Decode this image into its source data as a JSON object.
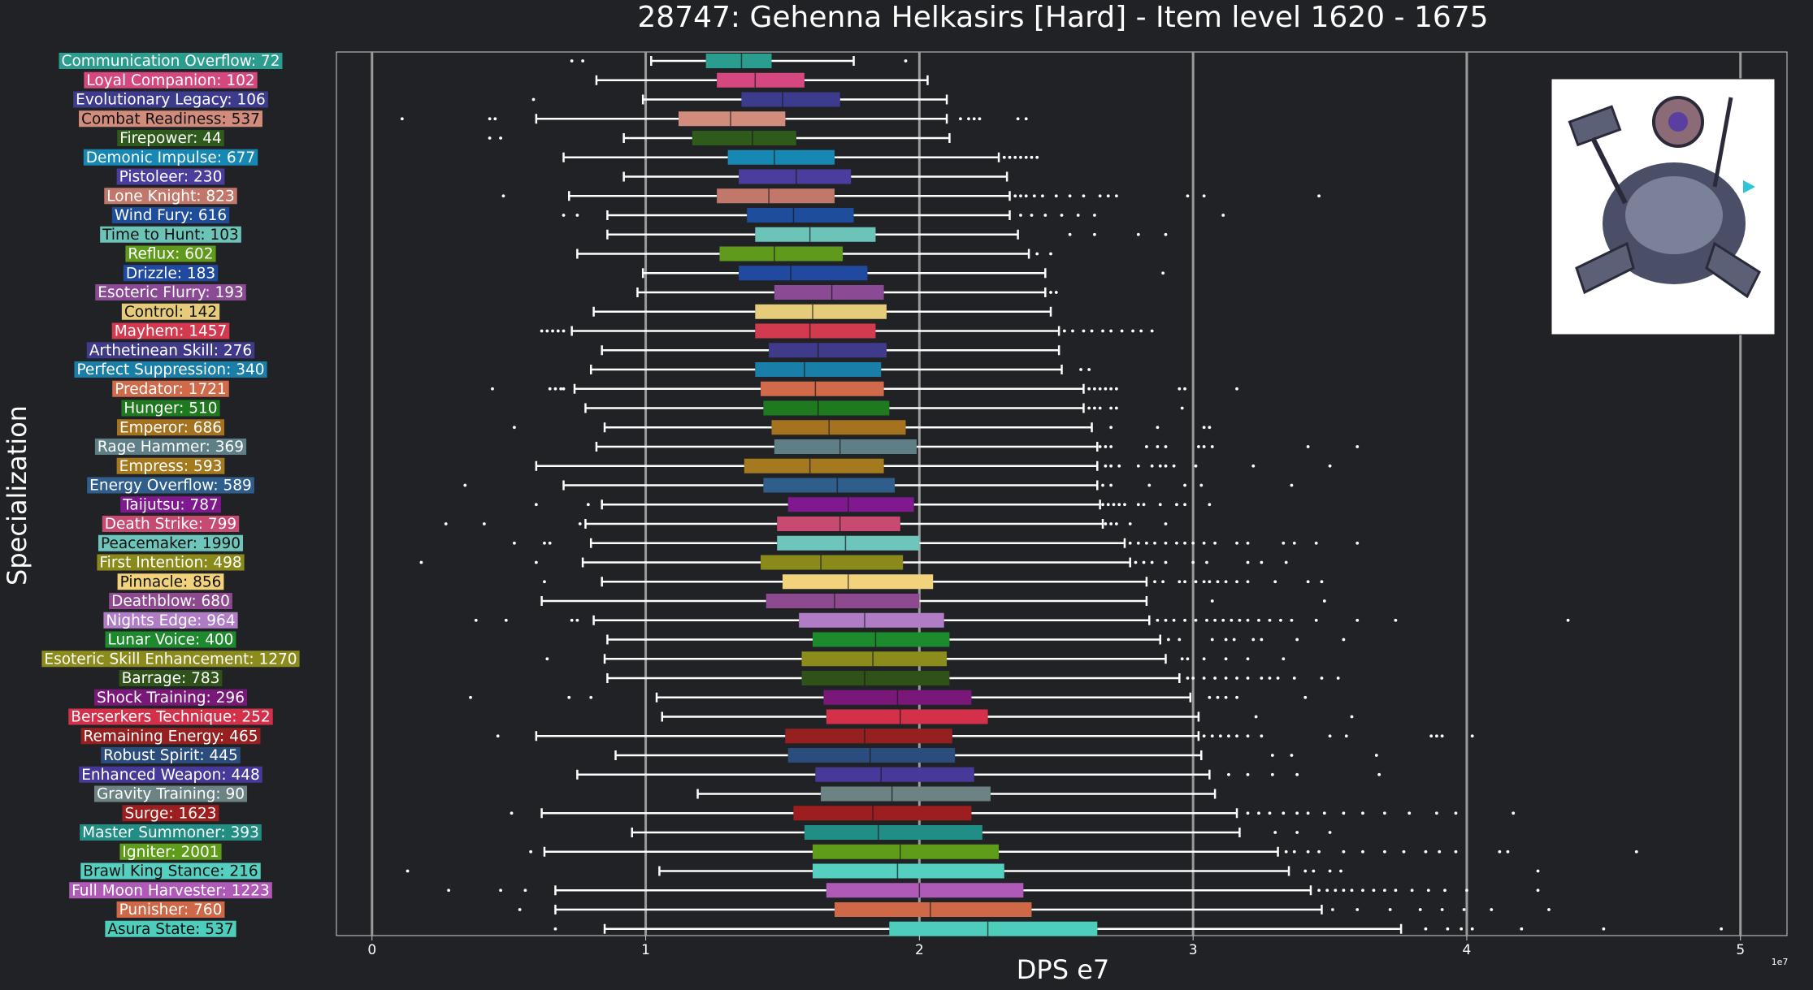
{
  "chart_data": {
    "type": "box",
    "title": "28747: Gehenna Helkasirs [Hard] - Item level 1620 - 1675",
    "xlabel": "DPS e7",
    "ylabel": "Specialization",
    "x_offset_label": "1e7",
    "xlim": [
      -0.13,
      5.17
    ],
    "xticks": [
      0,
      1,
      2,
      3,
      4,
      5
    ],
    "grid": "vertical lines at major ticks",
    "image": "boss portrait (top-right)",
    "categories": [
      {
        "label": "Communication Overflow: 72",
        "color": "#2a9d8f",
        "whislo": 1.02,
        "q1": 1.22,
        "med": 1.35,
        "q3": 1.46,
        "whishi": 1.76,
        "fliers": [
          0.73,
          0.77,
          1.95
        ]
      },
      {
        "label": "Loyal Companion: 102",
        "color": "#d4477f",
        "whislo": 0.82,
        "q1": 1.26,
        "med": 1.4,
        "q3": 1.58,
        "whishi": 2.03,
        "fliers": []
      },
      {
        "label": "Evolutionary Legacy: 106",
        "color": "#3d3b8e",
        "whislo": 0.99,
        "q1": 1.35,
        "med": 1.5,
        "q3": 1.71,
        "whishi": 2.1,
        "fliers": [
          0.59
        ]
      },
      {
        "label": "Combat Readiness: 537",
        "color": "#d28c7c",
        "whislo": 0.6,
        "q1": 1.12,
        "med": 1.31,
        "q3": 1.51,
        "whishi": 2.1,
        "fliers": [
          0.11,
          0.43,
          0.45,
          2.15,
          2.18,
          2.2,
          2.22,
          2.36,
          2.39
        ]
      },
      {
        "label": "Firepower: 44",
        "color": "#2e5a1c",
        "whislo": 0.92,
        "q1": 1.17,
        "med": 1.39,
        "q3": 1.55,
        "whishi": 2.11,
        "fliers": [
          0.43,
          0.47
        ]
      },
      {
        "label": "Demonic Impulse: 677",
        "color": "#1688b3",
        "whislo": 0.7,
        "q1": 1.3,
        "med": 1.47,
        "q3": 1.69,
        "whishi": 2.29,
        "fliers": [
          2.31,
          2.33,
          2.35,
          2.37,
          2.39,
          2.41,
          2.43
        ]
      },
      {
        "label": "Pistoleer: 230",
        "color": "#4b3d9e",
        "whislo": 0.92,
        "q1": 1.34,
        "med": 1.55,
        "q3": 1.75,
        "whishi": 2.32,
        "fliers": []
      },
      {
        "label": "Lone Knight: 823",
        "color": "#c1786a",
        "whislo": 0.72,
        "q1": 1.26,
        "med": 1.45,
        "q3": 1.69,
        "whishi": 2.33,
        "fliers": [
          0.48,
          2.35,
          2.37,
          2.39,
          2.42,
          2.45,
          2.5,
          2.55,
          2.6,
          2.66,
          2.69,
          2.72,
          2.98,
          3.04,
          3.46
        ]
      },
      {
        "label": "Wind Fury: 616",
        "color": "#1e4d9c",
        "whislo": 0.86,
        "q1": 1.37,
        "med": 1.54,
        "q3": 1.76,
        "whishi": 2.33,
        "fliers": [
          0.7,
          0.75,
          2.37,
          2.41,
          2.46,
          2.52,
          2.58,
          2.64,
          3.11
        ]
      },
      {
        "label": "Time to Hunt: 103",
        "color": "#6cc3b8",
        "whislo": 0.86,
        "q1": 1.4,
        "med": 1.6,
        "q3": 1.84,
        "whishi": 2.36,
        "fliers": [
          2.55,
          2.64,
          2.8,
          2.9
        ]
      },
      {
        "label": "Reflux: 602",
        "color": "#5f9a1c",
        "whislo": 0.75,
        "q1": 1.27,
        "med": 1.47,
        "q3": 1.72,
        "whishi": 2.4,
        "fliers": [
          2.43,
          2.48
        ]
      },
      {
        "label": "Drizzle: 183",
        "color": "#1f4aa0",
        "whislo": 0.99,
        "q1": 1.34,
        "med": 1.53,
        "q3": 1.81,
        "whishi": 2.46,
        "fliers": [
          2.89
        ]
      },
      {
        "label": "Esoteric Flurry: 193",
        "color": "#8a4a94",
        "whislo": 0.97,
        "q1": 1.47,
        "med": 1.68,
        "q3": 1.87,
        "whishi": 2.46,
        "fliers": [
          2.48,
          2.5
        ]
      },
      {
        "label": "Control: 142",
        "color": "#e6cc7a",
        "whislo": 0.81,
        "q1": 1.4,
        "med": 1.61,
        "q3": 1.88,
        "whishi": 2.48,
        "fliers": []
      },
      {
        "label": "Mayhem: 1457",
        "color": "#d43a4f",
        "whislo": 0.73,
        "q1": 1.4,
        "med": 1.6,
        "q3": 1.84,
        "whishi": 2.51,
        "fliers": [
          0.62,
          0.64,
          0.66,
          0.68,
          0.7,
          2.53,
          2.56,
          2.6,
          2.63,
          2.67,
          2.7,
          2.74,
          2.78,
          2.81,
          2.85
        ]
      },
      {
        "label": "Arthetinean Skill: 276",
        "color": "#3f3b8a",
        "whislo": 0.84,
        "q1": 1.45,
        "med": 1.63,
        "q3": 1.88,
        "whishi": 2.51,
        "fliers": []
      },
      {
        "label": "Perfect Suppression: 340",
        "color": "#1a7fa8",
        "whislo": 0.8,
        "q1": 1.4,
        "med": 1.58,
        "q3": 1.86,
        "whishi": 2.52,
        "fliers": [
          2.59,
          2.62
        ]
      },
      {
        "label": "Predator: 1721",
        "color": "#d06a4a",
        "whislo": 0.74,
        "q1": 1.42,
        "med": 1.62,
        "q3": 1.87,
        "whishi": 2.6,
        "fliers": [
          0.44,
          0.65,
          0.67,
          0.69,
          0.7,
          2.62,
          2.64,
          2.66,
          2.68,
          2.7,
          2.72,
          2.95,
          2.97,
          3.16
        ]
      },
      {
        "label": "Hunger: 510",
        "color": "#1f7a1f",
        "whislo": 0.78,
        "q1": 1.43,
        "med": 1.63,
        "q3": 1.89,
        "whishi": 2.6,
        "fliers": [
          2.62,
          2.64,
          2.66,
          2.7,
          2.72,
          2.96
        ]
      },
      {
        "label": "Emperor: 686",
        "color": "#a5731f",
        "whislo": 0.85,
        "q1": 1.46,
        "med": 1.67,
        "q3": 1.95,
        "whishi": 2.63,
        "fliers": [
          0.52,
          2.7,
          2.87,
          3.04,
          3.06
        ]
      },
      {
        "label": "Rage Hammer: 369",
        "color": "#5f7f87",
        "whislo": 0.82,
        "q1": 1.47,
        "med": 1.71,
        "q3": 1.99,
        "whishi": 2.65,
        "fliers": [
          2.66,
          2.68,
          2.7,
          2.83,
          2.87,
          2.9,
          3.02,
          3.04,
          3.07,
          3.42,
          3.6
        ]
      },
      {
        "label": "Empress: 593",
        "color": "#a57a1f",
        "whislo": 0.6,
        "q1": 1.36,
        "med": 1.6,
        "q3": 1.87,
        "whishi": 2.65,
        "fliers": [
          2.68,
          2.7,
          2.73,
          2.8,
          2.85,
          2.88,
          2.9,
          2.93,
          3.01,
          3.22,
          3.5
        ]
      },
      {
        "label": "Energy Overflow: 589",
        "color": "#2f5d8c",
        "whislo": 0.7,
        "q1": 1.43,
        "med": 1.7,
        "q3": 1.91,
        "whishi": 2.65,
        "fliers": [
          0.34,
          2.67,
          2.7,
          2.84,
          2.97,
          3.03,
          3.36
        ]
      },
      {
        "label": "Taijutsu: 787",
        "color": "#801890",
        "whislo": 0.84,
        "q1": 1.52,
        "med": 1.74,
        "q3": 1.98,
        "whishi": 2.66,
        "fliers": [
          0.6,
          0.79,
          2.67,
          2.69,
          2.71,
          2.73,
          2.75,
          2.8,
          2.82,
          2.88,
          2.94,
          2.97,
          3.06
        ]
      },
      {
        "label": "Death Strike: 799",
        "color": "#c74a70",
        "whislo": 0.78,
        "q1": 1.48,
        "med": 1.71,
        "q3": 1.93,
        "whishi": 2.67,
        "fliers": [
          0.27,
          0.41,
          0.76,
          2.68,
          2.7,
          2.72,
          2.77,
          2.9
        ]
      },
      {
        "label": "Peacemaker: 1990",
        "color": "#6ec5bb",
        "whislo": 0.8,
        "q1": 1.48,
        "med": 1.73,
        "q3": 2.0,
        "whishi": 2.75,
        "fliers": [
          0.52,
          0.63,
          0.65,
          2.77,
          2.8,
          2.83,
          2.86,
          2.9,
          2.94,
          2.97,
          3.0,
          3.04,
          3.08,
          3.16,
          3.2,
          3.33,
          3.37,
          3.45,
          3.6
        ]
      },
      {
        "label": "First Intention: 498",
        "color": "#8a8a1a",
        "whislo": 0.77,
        "q1": 1.42,
        "med": 1.64,
        "q3": 1.94,
        "whishi": 2.77,
        "fliers": [
          0.18,
          0.6,
          2.79,
          2.82,
          2.85,
          2.9,
          3.0,
          3.05,
          3.2,
          3.25,
          3.34
        ]
      },
      {
        "label": "Pinnacle: 856",
        "color": "#f2d27a",
        "whislo": 0.84,
        "q1": 1.5,
        "med": 1.74,
        "q3": 2.05,
        "whishi": 2.83,
        "fliers": [
          0.63,
          2.86,
          2.89,
          2.95,
          2.97,
          3.01,
          3.04,
          3.06,
          3.09,
          3.12,
          3.16,
          3.2,
          3.3,
          3.42,
          3.47
        ]
      },
      {
        "label": "Deathblow: 680",
        "color": "#8e4a8e",
        "whislo": 0.62,
        "q1": 1.44,
        "med": 1.69,
        "q3": 2.0,
        "whishi": 2.83,
        "fliers": [
          3.07,
          3.48
        ]
      },
      {
        "label": "Nights Edge: 964",
        "color": "#b07cc6",
        "whislo": 0.81,
        "q1": 1.56,
        "med": 1.8,
        "q3": 2.09,
        "whishi": 2.84,
        "fliers": [
          0.38,
          0.49,
          0.73,
          0.75,
          2.87,
          2.9,
          2.93,
          2.97,
          3.01,
          3.05,
          3.08,
          3.11,
          3.14,
          3.17,
          3.2,
          3.24,
          3.28,
          3.32,
          3.36,
          3.45,
          3.6,
          3.74,
          4.37
        ]
      },
      {
        "label": "Lunar Voice: 400",
        "color": "#1e8a2e",
        "whislo": 0.86,
        "q1": 1.61,
        "med": 1.84,
        "q3": 2.11,
        "whishi": 2.88,
        "fliers": [
          2.91,
          2.95,
          3.07,
          3.12,
          3.15,
          3.22,
          3.25,
          3.38,
          3.55
        ]
      },
      {
        "label": "Esoteric Skill Enhancement: 1270",
        "color": "#8c8c1c",
        "whislo": 0.85,
        "q1": 1.57,
        "med": 1.83,
        "q3": 2.1,
        "whishi": 2.9,
        "fliers": [
          0.64,
          2.96,
          2.98,
          3.04,
          3.12,
          3.2,
          3.33
        ]
      },
      {
        "label": "Barrage: 783",
        "color": "#2f5219",
        "whislo": 0.86,
        "q1": 1.57,
        "med": 1.8,
        "q3": 2.11,
        "whishi": 2.95,
        "fliers": [
          2.98,
          3.0,
          3.04,
          3.08,
          3.12,
          3.16,
          3.2,
          3.25,
          3.28,
          3.31,
          3.37,
          3.47,
          3.53
        ]
      },
      {
        "label": "Shock Training: 296",
        "color": "#7a187a",
        "whislo": 1.04,
        "q1": 1.65,
        "med": 1.92,
        "q3": 2.19,
        "whishi": 2.99,
        "fliers": [
          0.36,
          0.72,
          0.8,
          3.06,
          3.09,
          3.12,
          3.16,
          3.41
        ]
      },
      {
        "label": "Berserkers Technique: 252",
        "color": "#d4304a",
        "whislo": 1.06,
        "q1": 1.66,
        "med": 1.93,
        "q3": 2.25,
        "whishi": 3.02,
        "fliers": [
          3.23,
          3.58
        ]
      },
      {
        "label": "Remaining Energy: 465",
        "color": "#962020",
        "whislo": 0.6,
        "q1": 1.51,
        "med": 1.8,
        "q3": 2.12,
        "whishi": 3.02,
        "fliers": [
          0.46,
          3.04,
          3.07,
          3.1,
          3.13,
          3.16,
          3.2,
          3.25,
          3.5,
          3.56,
          3.87,
          3.89,
          3.91,
          4.02
        ]
      },
      {
        "label": "Robust Spirit: 445",
        "color": "#2a4d7d",
        "whislo": 0.89,
        "q1": 1.52,
        "med": 1.82,
        "q3": 2.13,
        "whishi": 3.03,
        "fliers": [
          3.29,
          3.36,
          3.67
        ]
      },
      {
        "label": "Enhanced Weapon: 448",
        "color": "#46399a",
        "whislo": 0.75,
        "q1": 1.62,
        "med": 1.86,
        "q3": 2.2,
        "whishi": 3.06,
        "fliers": [
          3.13,
          3.2,
          3.29,
          3.38,
          3.68
        ]
      },
      {
        "label": "Gravity Training: 90",
        "color": "#6c8384",
        "whislo": 1.19,
        "q1": 1.64,
        "med": 1.9,
        "q3": 2.26,
        "whishi": 3.08,
        "fliers": []
      },
      {
        "label": "Surge: 1623",
        "color": "#9c1e1e",
        "whislo": 0.62,
        "q1": 1.54,
        "med": 1.83,
        "q3": 2.19,
        "whishi": 3.16,
        "fliers": [
          0.51,
          3.2,
          3.24,
          3.28,
          3.33,
          3.38,
          3.42,
          3.48,
          3.55,
          3.62,
          3.7,
          3.79,
          3.89,
          3.96,
          4.17
        ]
      },
      {
        "label": "Master Summoner: 393",
        "color": "#218e85",
        "whislo": 0.95,
        "q1": 1.58,
        "med": 1.85,
        "q3": 2.23,
        "whishi": 3.17,
        "fliers": [
          3.3,
          3.38,
          3.5
        ]
      },
      {
        "label": "Igniter: 2001",
        "color": "#5f9c1a",
        "whislo": 0.63,
        "q1": 1.61,
        "med": 1.93,
        "q3": 2.29,
        "whishi": 3.31,
        "fliers": [
          0.58,
          3.34,
          3.37,
          3.42,
          3.46,
          3.55,
          3.62,
          3.7,
          3.77,
          3.85,
          3.9,
          3.96,
          4.12,
          4.15,
          4.62
        ]
      },
      {
        "label": "Brawl King Stance: 216",
        "color": "#55cfc0",
        "whislo": 1.05,
        "q1": 1.61,
        "med": 1.92,
        "q3": 2.31,
        "whishi": 3.35,
        "fliers": [
          0.13,
          3.41,
          3.44,
          3.5,
          3.54,
          4.26
        ]
      },
      {
        "label": "Full Moon Harvester: 1223",
        "color": "#b05ab7",
        "whislo": 0.67,
        "q1": 1.66,
        "med": 2.0,
        "q3": 2.38,
        "whishi": 3.43,
        "fliers": [
          0.28,
          0.47,
          0.56,
          3.46,
          3.49,
          3.52,
          3.55,
          3.58,
          3.62,
          3.66,
          3.7,
          3.74,
          3.8,
          3.86,
          3.92,
          4.0,
          4.26
        ]
      },
      {
        "label": "Punisher: 760",
        "color": "#cf6847",
        "whislo": 0.67,
        "q1": 1.69,
        "med": 2.04,
        "q3": 2.41,
        "whishi": 3.47,
        "fliers": [
          0.54,
          3.51,
          3.6,
          3.72,
          3.83,
          3.91,
          3.99,
          4.09,
          4.3
        ]
      },
      {
        "label": "Asura State: 537",
        "color": "#4ecdbd",
        "whislo": 0.85,
        "q1": 1.89,
        "med": 2.25,
        "q3": 2.65,
        "whishi": 3.76,
        "fliers": [
          0.67,
          3.85,
          3.93,
          3.98,
          4.02,
          4.2,
          4.5,
          4.93
        ]
      }
    ]
  }
}
